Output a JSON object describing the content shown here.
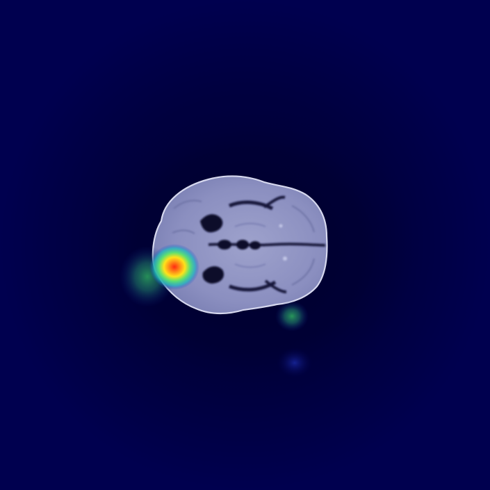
{
  "image": {
    "subject": "axial-brain-mri-slice",
    "overlay": "heatmap-attention-map",
    "colors": {
      "background": "#00004a",
      "background_dark": "#000032",
      "brain_tissue": "#8a8fc0",
      "brain_tissue_light": "#a7abd4",
      "brain_outline": "#d6d8ee",
      "sulci": "#0b0c2a",
      "heat_low": "#1b3fd0",
      "heat_mid": "#2fd06a",
      "heat_high": "#ffd21a",
      "heat_peak": "#ff2a12"
    }
  }
}
